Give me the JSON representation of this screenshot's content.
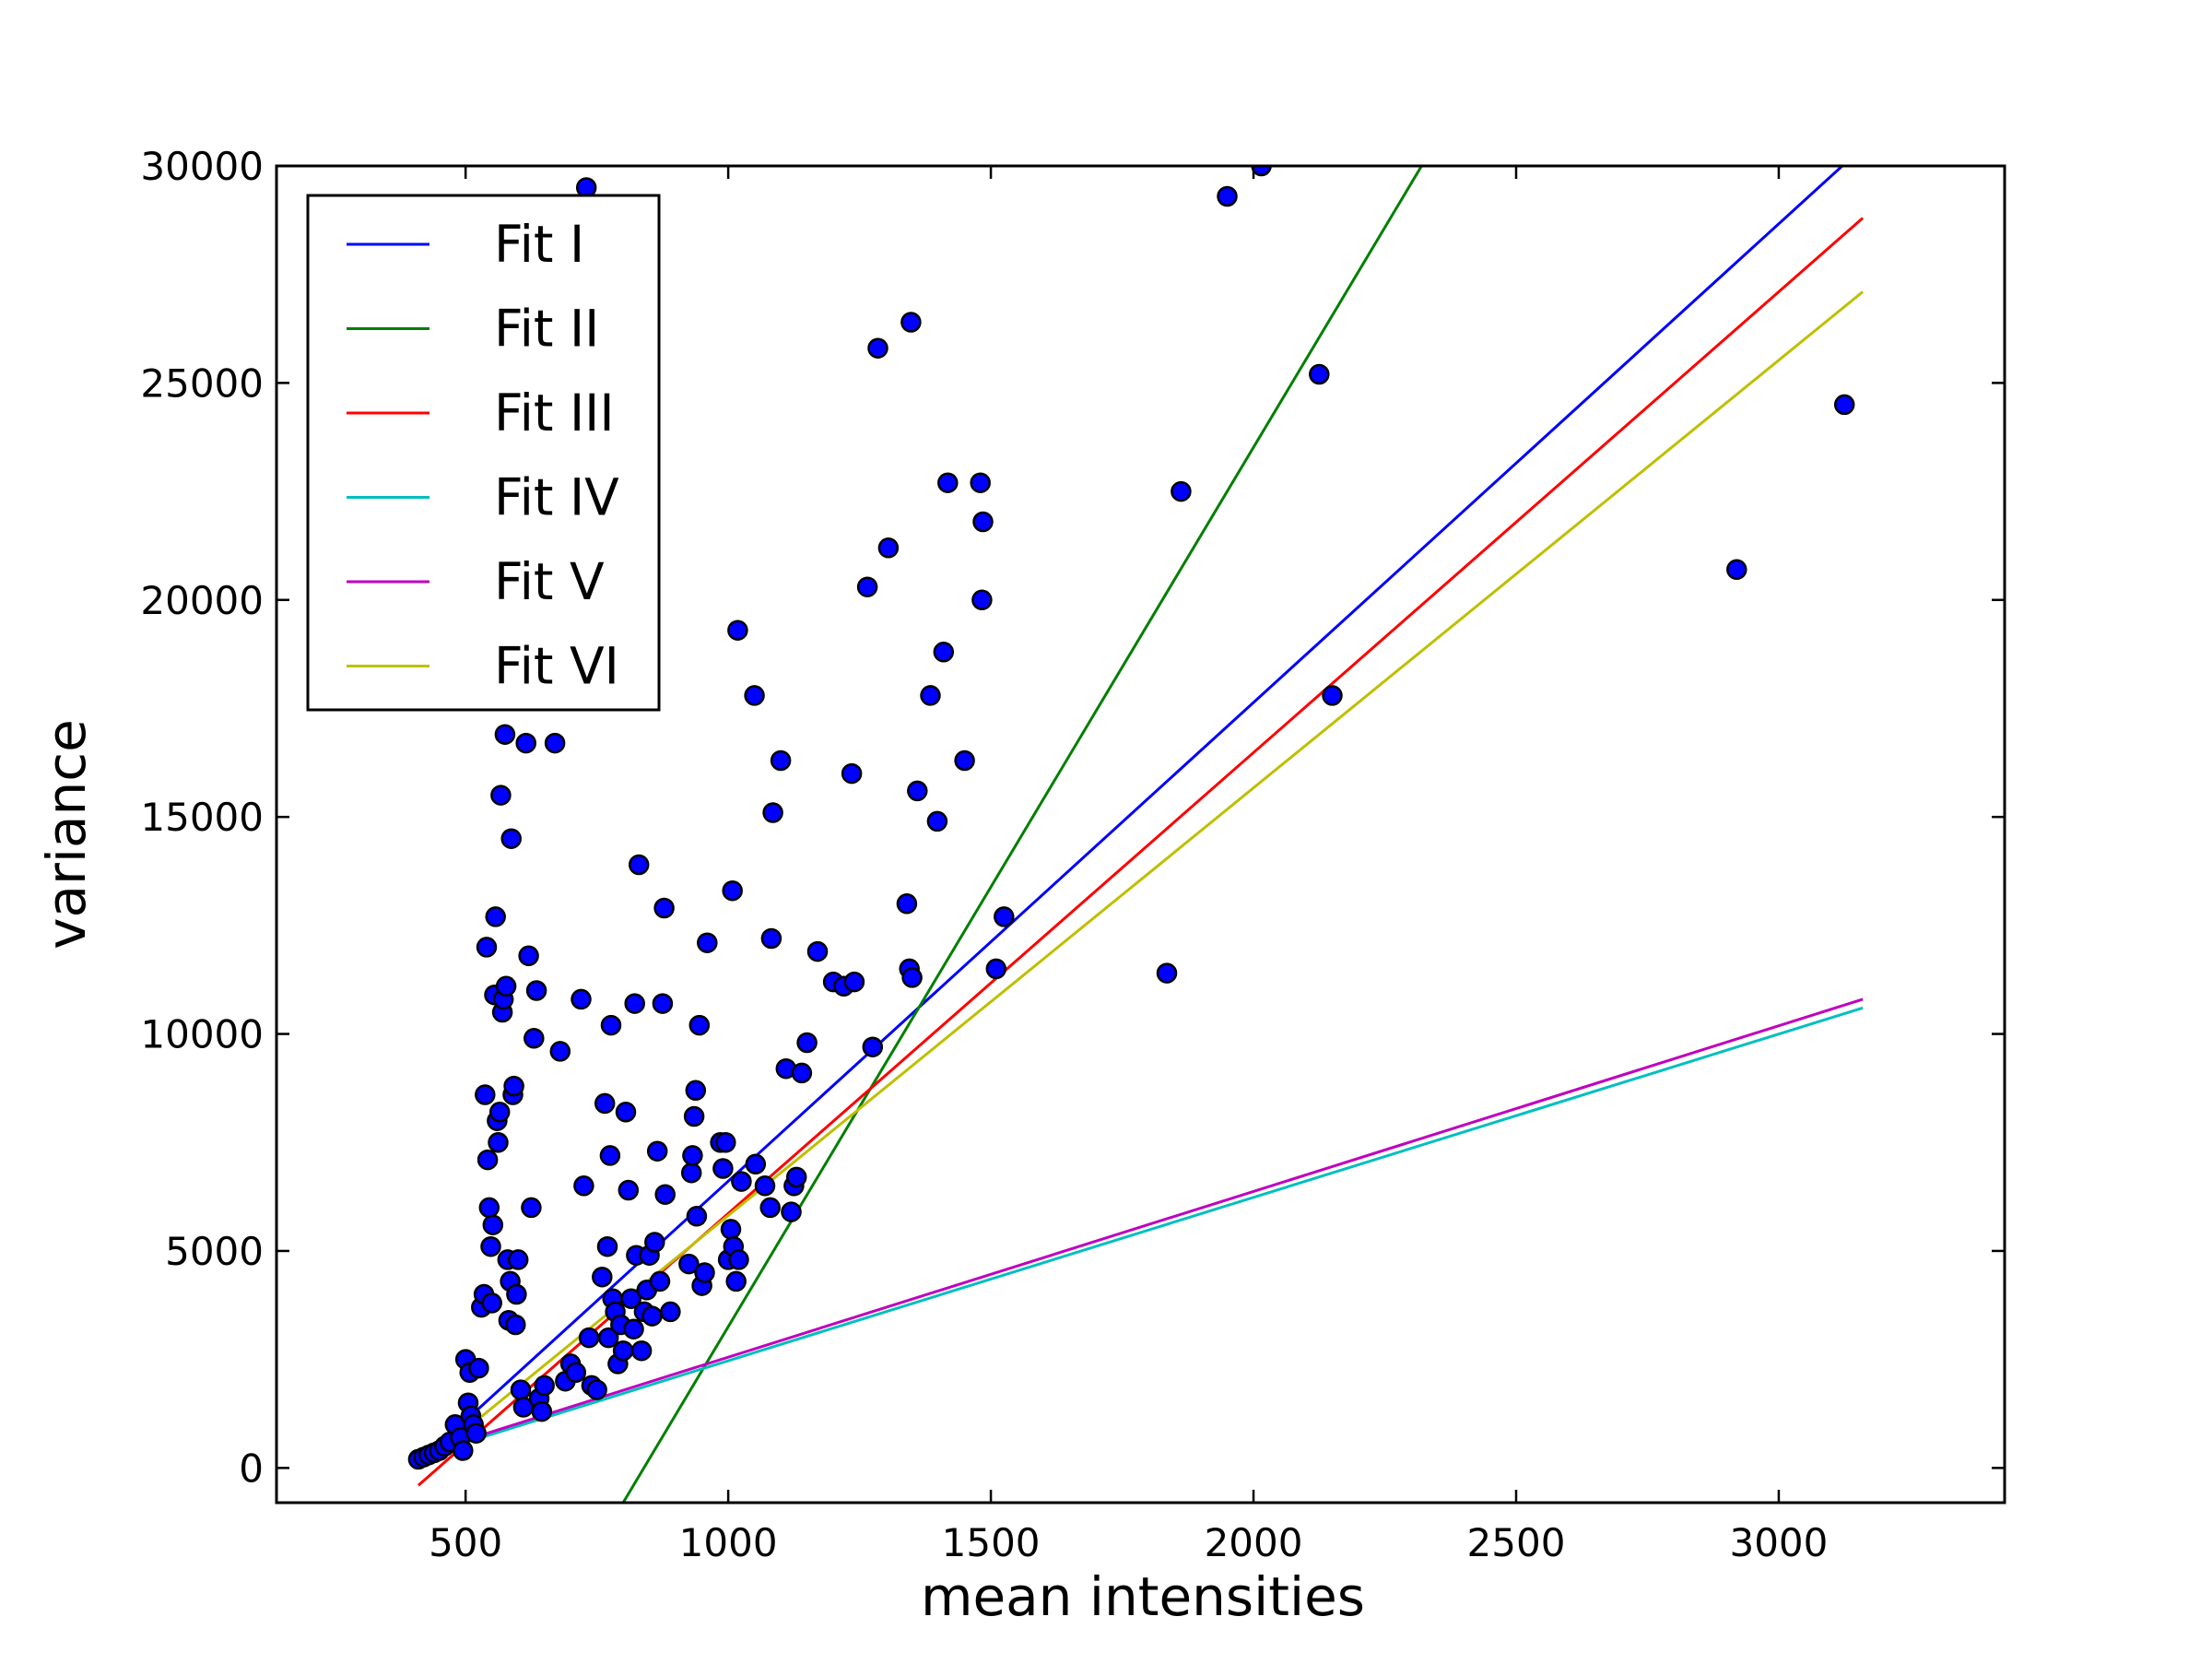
{
  "chart_data": {
    "type": "scatter",
    "title": "",
    "xlabel": "mean intensities",
    "ylabel": "variance",
    "xlim": [
      140,
      3430
    ],
    "ylim": [
      -800,
      30000
    ],
    "xticks": [
      500,
      1000,
      1500,
      2000,
      2500,
      3000
    ],
    "yticks": [
      0,
      5000,
      10000,
      15000,
      20000,
      25000,
      30000
    ],
    "xtick_labels": [
      "500",
      "1000",
      "1500",
      "2000",
      "2500",
      "3000"
    ],
    "ytick_labels": [
      "0",
      "5000",
      "10000",
      "15000",
      "20000",
      "25000",
      "30000"
    ],
    "grid": false,
    "legend_position": "top-left",
    "scatter": {
      "color": "#0000ff",
      "edge_color": "#000000",
      "points": [
        [
          410,
          200
        ],
        [
          420,
          250
        ],
        [
          430,
          300
        ],
        [
          440,
          350
        ],
        [
          450,
          400
        ],
        [
          460,
          500
        ],
        [
          470,
          600
        ],
        [
          480,
          1000
        ],
        [
          490,
          700
        ],
        [
          495,
          400
        ],
        [
          500,
          2500
        ],
        [
          505,
          1500
        ],
        [
          508,
          2200
        ],
        [
          510,
          1200
        ],
        [
          515,
          1000
        ],
        [
          520,
          800
        ],
        [
          525,
          2300
        ],
        [
          530,
          3700
        ],
        [
          535,
          4000
        ],
        [
          537,
          8600
        ],
        [
          540,
          12000
        ],
        [
          542,
          7100
        ],
        [
          545,
          6000
        ],
        [
          548,
          5100
        ],
        [
          550,
          3800
        ],
        [
          552,
          5600
        ],
        [
          555,
          10900
        ],
        [
          557,
          12700
        ],
        [
          560,
          8000
        ],
        [
          562,
          7500
        ],
        [
          565,
          8200
        ],
        [
          567,
          15500
        ],
        [
          570,
          10500
        ],
        [
          572,
          10800
        ],
        [
          575,
          16900
        ],
        [
          577,
          11100
        ],
        [
          580,
          4800
        ],
        [
          582,
          3400
        ],
        [
          585,
          4300
        ],
        [
          587,
          14500
        ],
        [
          590,
          8600
        ],
        [
          592,
          8800
        ],
        [
          595,
          3300
        ],
        [
          597,
          4000
        ],
        [
          600,
          4800
        ],
        [
          605,
          1800
        ],
        [
          610,
          1400
        ],
        [
          615,
          16700
        ],
        [
          620,
          11800
        ],
        [
          625,
          6000
        ],
        [
          630,
          9900
        ],
        [
          635,
          11000
        ],
        [
          640,
          1600
        ],
        [
          645,
          1300
        ],
        [
          650,
          1900
        ],
        [
          670,
          16700
        ],
        [
          680,
          9600
        ],
        [
          690,
          2000
        ],
        [
          700,
          2400
        ],
        [
          710,
          2200
        ],
        [
          720,
          10800
        ],
        [
          725,
          6500
        ],
        [
          730,
          29500
        ],
        [
          735,
          3000
        ],
        [
          740,
          1900
        ],
        [
          750,
          1800
        ],
        [
          760,
          4400
        ],
        [
          765,
          8400
        ],
        [
          770,
          5100
        ],
        [
          772,
          3000
        ],
        [
          775,
          7200
        ],
        [
          777,
          10200
        ],
        [
          780,
          3900
        ],
        [
          785,
          3600
        ],
        [
          790,
          2400
        ],
        [
          795,
          3300
        ],
        [
          800,
          2700
        ],
        [
          805,
          8200
        ],
        [
          810,
          6400
        ],
        [
          815,
          3900
        ],
        [
          820,
          3200
        ],
        [
          822,
          10700
        ],
        [
          825,
          4900
        ],
        [
          830,
          13900
        ],
        [
          835,
          2700
        ],
        [
          840,
          3600
        ],
        [
          845,
          4100
        ],
        [
          850,
          4900
        ],
        [
          855,
          3500
        ],
        [
          860,
          5200
        ],
        [
          865,
          7300
        ],
        [
          870,
          4300
        ],
        [
          875,
          10700
        ],
        [
          878,
          12900
        ],
        [
          880,
          6300
        ],
        [
          890,
          3600
        ],
        [
          925,
          4700
        ],
        [
          930,
          6800
        ],
        [
          932,
          7200
        ],
        [
          935,
          8100
        ],
        [
          938,
          8700
        ],
        [
          940,
          5800
        ],
        [
          945,
          10200
        ],
        [
          950,
          4200
        ],
        [
          955,
          4500
        ],
        [
          960,
          12100
        ],
        [
          985,
          7500
        ],
        [
          990,
          6900
        ],
        [
          995,
          7500
        ],
        [
          1000,
          4800
        ],
        [
          1005,
          5500
        ],
        [
          1008,
          13300
        ],
        [
          1010,
          5100
        ],
        [
          1015,
          4300
        ],
        [
          1018,
          19300
        ],
        [
          1020,
          4800
        ],
        [
          1025,
          6600
        ],
        [
          1050,
          17800
        ],
        [
          1052,
          7000
        ],
        [
          1070,
          6500
        ],
        [
          1080,
          6000
        ],
        [
          1082,
          12200
        ],
        [
          1085,
          15100
        ],
        [
          1100,
          16300
        ],
        [
          1110,
          9200
        ],
        [
          1120,
          5900
        ],
        [
          1125,
          6500
        ],
        [
          1130,
          6700
        ],
        [
          1140,
          9100
        ],
        [
          1150,
          9800
        ],
        [
          1170,
          11900
        ],
        [
          1200,
          11200
        ],
        [
          1220,
          11100
        ],
        [
          1235,
          16000
        ],
        [
          1240,
          11200
        ],
        [
          1265,
          20300
        ],
        [
          1275,
          9700
        ],
        [
          1285,
          25800
        ],
        [
          1305,
          21200
        ],
        [
          1340,
          13000
        ],
        [
          1345,
          11500
        ],
        [
          1348,
          26400
        ],
        [
          1350,
          11300
        ],
        [
          1360,
          15600
        ],
        [
          1385,
          17800
        ],
        [
          1398,
          14900
        ],
        [
          1410,
          18800
        ],
        [
          1418,
          22700
        ],
        [
          1450,
          16300
        ],
        [
          1480,
          22700
        ],
        [
          1483,
          20000
        ],
        [
          1485,
          21800
        ],
        [
          1510,
          11500
        ],
        [
          1525,
          12700
        ],
        [
          1835,
          11400
        ],
        [
          1862,
          22500
        ],
        [
          1950,
          29300
        ],
        [
          2015,
          30000
        ],
        [
          2125,
          25200
        ],
        [
          2150,
          17800
        ],
        [
          2920,
          20700
        ],
        [
          3125,
          24500
        ]
      ]
    },
    "series": [
      {
        "name": "Fit I",
        "color": "#0000ff",
        "x": [
          410,
          3130
        ],
        "y": [
          100,
          30100
        ]
      },
      {
        "name": "Fit II",
        "color": "#007f00",
        "x": [
          800,
          2320
        ],
        "y": [
          -800,
          30000
        ]
      },
      {
        "name": "Fit III",
        "color": "#ff0000",
        "x": [
          410,
          3160
        ],
        "y": [
          -400,
          28800
        ]
      },
      {
        "name": "Fit IV",
        "color": "#00bfbf",
        "x": [
          410,
          3160
        ],
        "y": [
          250,
          10600
        ]
      },
      {
        "name": "Fit V",
        "color": "#bf00bf",
        "x": [
          410,
          3160
        ],
        "y": [
          300,
          10800
        ]
      },
      {
        "name": "Fit VI",
        "color": "#bfbf00",
        "x": [
          410,
          3160
        ],
        "y": [
          0,
          27100
        ]
      }
    ]
  }
}
